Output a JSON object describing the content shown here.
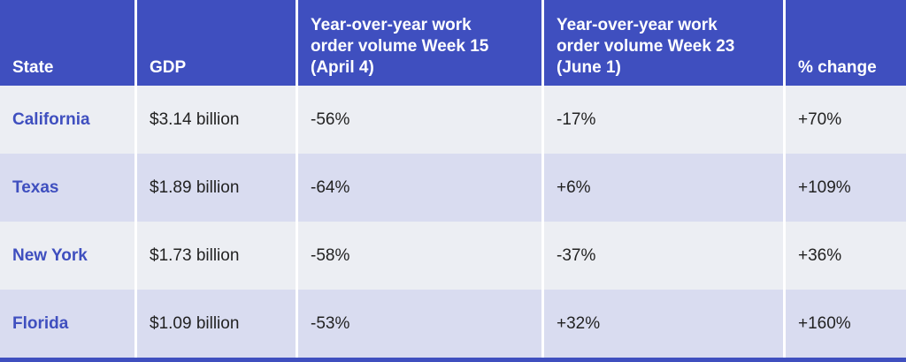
{
  "table": {
    "header": [
      "State",
      "GDP",
      "Year-over-year work order volume Week 15 (April 4)",
      "Year-over-year work order volume Week 23 (June 1)",
      "% change"
    ],
    "rows": [
      [
        "California",
        "$3.14 billion",
        "-56%",
        "-17%",
        "+70%"
      ],
      [
        "Texas",
        "$1.89 billion",
        "-64%",
        "+6%",
        "+109%"
      ],
      [
        "New York",
        "$1.73 billion",
        "-58%",
        "-37%",
        "+36%"
      ],
      [
        "Florida",
        "$1.09 billion",
        "-53%",
        "+32%",
        "+160%"
      ]
    ]
  }
}
